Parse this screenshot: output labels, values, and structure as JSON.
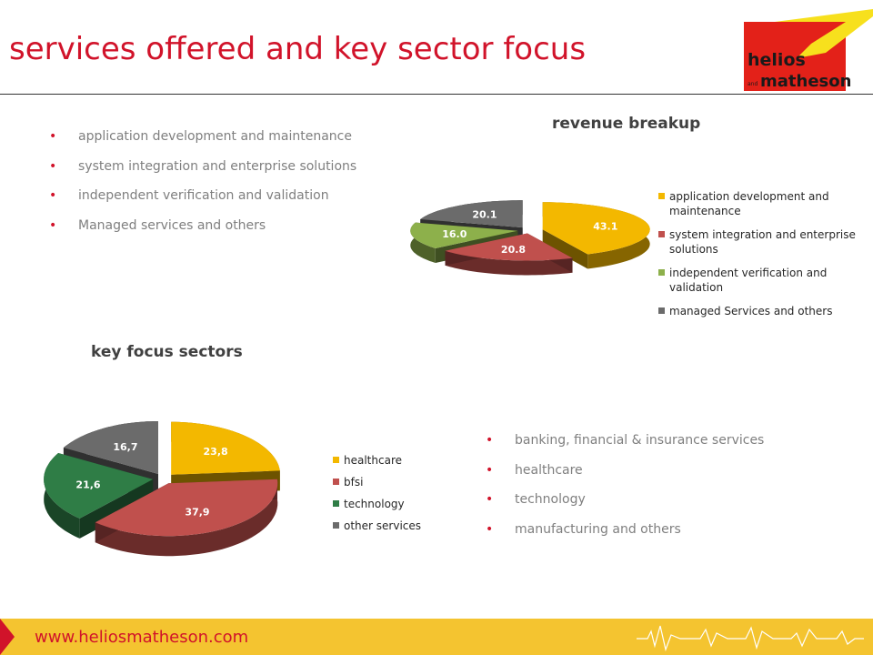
{
  "title": "services offered and key sector focus",
  "logo": {
    "line1": "helios",
    "line2a": "and",
    "line2b": "matheson",
    "colors": {
      "red": "#e32119",
      "yellow": "#f7e01d"
    }
  },
  "services": {
    "items": [
      "application development and maintenance",
      "system integration and enterprise solutions",
      "independent verification and validation",
      "Managed services and others"
    ]
  },
  "sectors": {
    "items": [
      "banking, financial & insurance services",
      "healthcare",
      "technology",
      "manufacturing and others"
    ]
  },
  "colors": {
    "accent": "#d1132a",
    "text_gray": "#7f7f7f",
    "footer": "#f4c430"
  },
  "footer": {
    "url": "www.heliosmatheson.com"
  },
  "chart_data": [
    {
      "type": "pie",
      "title": "revenue breakup",
      "labels": [
        "application development and maintenance",
        "system integration and enterprise solutions",
        "independent verification and validation",
        "managed Services and others"
      ],
      "values": [
        43.1,
        20.8,
        16.0,
        20.1
      ],
      "value_labels": [
        "43.1",
        "20.8",
        "16.0",
        "20.1"
      ],
      "colors": [
        "#f3b800",
        "#c0504d",
        "#8db04b",
        "#6b6b6b"
      ],
      "exploded": true,
      "style": "3d",
      "legend": "right"
    },
    {
      "type": "pie",
      "title": "key focus sectors",
      "labels": [
        "healthcare",
        "bfsi",
        "technology",
        "other services"
      ],
      "values": [
        23.8,
        37.9,
        21.6,
        16.7
      ],
      "value_labels": [
        "23,8",
        "37,9",
        "21,6",
        "16,7"
      ],
      "colors": [
        "#f3b800",
        "#c0504d",
        "#2f7d46",
        "#6b6b6b"
      ],
      "exploded": true,
      "style": "3d",
      "legend": "right"
    }
  ]
}
